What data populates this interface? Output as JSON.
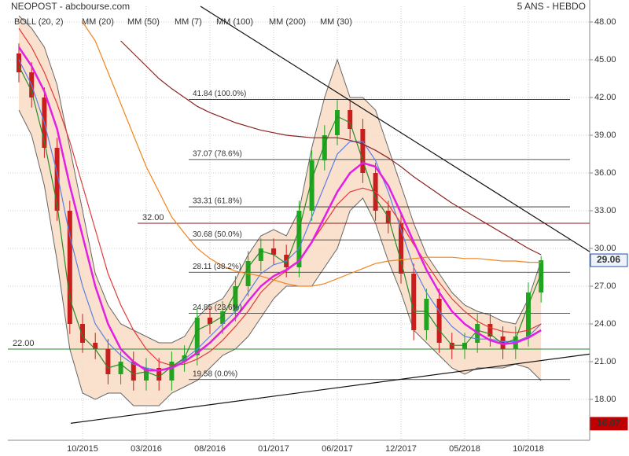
{
  "chart_data": {
    "type": "candlestick",
    "title": "NEOPOST - abcbourse.com",
    "subtitle": "5 ANS - HEBDO",
    "categories": [
      null,
      null,
      null,
      null,
      null,
      "10/2015",
      null,
      null,
      null,
      null,
      "03/2016",
      null,
      null,
      null,
      null,
      "08/2016",
      null,
      null,
      null,
      null,
      "01/2017",
      null,
      null,
      null,
      null,
      "06/2017",
      null,
      null,
      null,
      null,
      "12/2017",
      null,
      null,
      null,
      null,
      "05/2018",
      null,
      null,
      null,
      null,
      "10/2018",
      null
    ],
    "open": [
      45.5,
      44,
      42,
      38,
      33,
      24,
      22.5,
      22,
      20,
      21,
      19.5,
      20.5,
      19.5,
      21,
      21.5,
      24.5,
      24,
      25,
      27,
      29,
      30,
      29.5,
      28.5,
      33,
      37,
      39,
      41,
      39.5,
      36,
      33,
      32,
      28,
      23.5,
      26,
      22.5,
      22,
      22.5,
      24,
      23,
      22,
      23,
      26.5
    ],
    "high": [
      46.3,
      44.8,
      42.8,
      38.8,
      33.8,
      24.8,
      23.3,
      22.8,
      21.8,
      21.8,
      21.3,
      21.3,
      21.8,
      22.3,
      25.3,
      25.3,
      25.8,
      27.8,
      29.8,
      30.8,
      30.8,
      30.3,
      33.8,
      37.8,
      39.8,
      41.8,
      41.8,
      40.3,
      36.8,
      33.8,
      32.8,
      28.8,
      26.8,
      26.8,
      23.3,
      23.3,
      24.8,
      24.8,
      23.8,
      23.8,
      27.3,
      29.4
    ],
    "low": [
      43.2,
      41.2,
      37.2,
      32.2,
      23.2,
      21.7,
      21.2,
      19.2,
      19.2,
      18.7,
      18.7,
      18.7,
      18.7,
      20.2,
      20.7,
      23.2,
      23.2,
      24.2,
      26.2,
      28.2,
      28.7,
      27.7,
      27.7,
      32.2,
      36.2,
      38.2,
      38.7,
      35.2,
      32.2,
      31.2,
      27.2,
      22.7,
      22.7,
      21.7,
      21.2,
      21.2,
      21.7,
      22.2,
      21.2,
      21.2,
      22.2,
      25.7
    ],
    "close": [
      44,
      42,
      38,
      33,
      24,
      22.5,
      22,
      20,
      21,
      19.5,
      20.5,
      19.5,
      21,
      21.5,
      24.5,
      24,
      25,
      27,
      29,
      30,
      29.5,
      28.5,
      33,
      37,
      39,
      41,
      39.5,
      36,
      33,
      32,
      28,
      23.5,
      26,
      22.5,
      22,
      22.5,
      24,
      23,
      22,
      23,
      26.5,
      29.06
    ],
    "up_color": "#1fa51f",
    "down_color": "#c81e1e",
    "bands": {
      "name": "BOLL (20, 2)",
      "color": "#f9dcc4",
      "line_color": "#666666",
      "upper": [
        48.5,
        47.5,
        46,
        43,
        38,
        33,
        28,
        25.5,
        24,
        23.5,
        23,
        22.5,
        22.5,
        23,
        24.5,
        25.5,
        26,
        27.5,
        29.5,
        31,
        31.5,
        31,
        33,
        38,
        42,
        45,
        42,
        42,
        41,
        38,
        35,
        32,
        29.5,
        28,
        26.5,
        25.5,
        25,
        24.7,
        24.2,
        24,
        26,
        29
      ],
      "lower": [
        41,
        39,
        35,
        29,
        22,
        18.5,
        18,
        18.5,
        18.5,
        17.5,
        17.5,
        17.5,
        18.5,
        19,
        19.5,
        20.5,
        21.5,
        22,
        23,
        24.5,
        26,
        27,
        27,
        27,
        28.5,
        30,
        33,
        34,
        32,
        29,
        26.5,
        23.5,
        22.5,
        21.5,
        20.5,
        20,
        20.5,
        20.5,
        20.5,
        20.8,
        20.5,
        19.5
      ]
    },
    "series": [
      {
        "name": "MM (20)",
        "color": "#5b7fe6",
        "values": [
          45,
          43,
          40,
          36,
          31,
          27,
          24,
          22.5,
          21.5,
          20.8,
          20.5,
          20.3,
          20.6,
          21.2,
          22,
          23,
          24,
          25,
          26.5,
          28,
          28.7,
          29,
          30,
          32.5,
          35,
          37.5,
          38.5,
          38.5,
          37,
          34.5,
          31.5,
          28.5,
          26.5,
          25,
          23.8,
          23,
          22.8,
          22.8,
          22.6,
          22.6,
          23,
          24
        ]
      },
      {
        "name": "MM (50)",
        "color": "#e23a3a",
        "values": [
          47.5,
          46,
          44,
          41.5,
          38.5,
          35,
          31.5,
          28,
          25.5,
          23.5,
          22,
          21,
          20.7,
          20.8,
          21.2,
          21.8,
          22.7,
          23.8,
          25,
          26.5,
          27.5,
          28.2,
          29,
          30.5,
          32,
          33.5,
          34.5,
          34.8,
          34.5,
          33.5,
          32,
          30.3,
          28.8,
          27.3,
          26,
          25,
          24.2,
          23.7,
          23.4,
          23.3,
          23.5,
          24
        ]
      },
      {
        "name": "MM (7)",
        "color": "#2a8a2a",
        "values": [
          44.5,
          42.5,
          38.5,
          33.5,
          26,
          23,
          22,
          20.5,
          20.8,
          20,
          20.2,
          19.8,
          20.6,
          21.3,
          23.5,
          24,
          24.6,
          26.5,
          28.5,
          29.8,
          29.5,
          28.8,
          31.5,
          35.5,
          38.3,
          40.5,
          40,
          37,
          34,
          32.5,
          29,
          25,
          25,
          23.5,
          22.3,
          22.3,
          23.5,
          23.2,
          22.4,
          22.8,
          25.5,
          28
        ]
      },
      {
        "name": "MM (100)",
        "color": "#f0841e",
        "values": [
          null,
          null,
          null,
          null,
          null,
          48,
          46.5,
          44,
          41.5,
          39,
          36.5,
          34.5,
          32.5,
          31.2,
          30,
          29.2,
          28.6,
          28.2,
          28,
          27.8,
          27.5,
          27.2,
          27,
          27,
          27.2,
          27.6,
          28,
          28.4,
          28.8,
          29,
          29.1,
          29.2,
          29.3,
          29.3,
          29.3,
          29.2,
          29.2,
          29.1,
          29,
          29,
          28.9,
          28.9
        ]
      },
      {
        "name": "MM (200)",
        "color": "#8b2323",
        "values": [
          null,
          null,
          null,
          null,
          null,
          null,
          null,
          null,
          46.5,
          45.5,
          44.5,
          43.5,
          42.7,
          42,
          41.3,
          40.8,
          40.4,
          40,
          39.7,
          39.4,
          39.2,
          39,
          38.9,
          38.8,
          38.8,
          38.8,
          38.6,
          38.3,
          37.8,
          37.2,
          36.5,
          35.7,
          35,
          34.3,
          33.6,
          33,
          32.4,
          31.8,
          31.2,
          30.6,
          30,
          29.5
        ]
      },
      {
        "name": "MM (30)",
        "color": "#e21fe2",
        "values": [
          46,
          44.5,
          42.5,
          39.5,
          35,
          31,
          27,
          24,
          22,
          21,
          20.3,
          20.3,
          20.5,
          21,
          21.7,
          22.5,
          23.5,
          24.5,
          25.8,
          27,
          27.8,
          28.3,
          29,
          30.5,
          32.5,
          34.5,
          36,
          36.8,
          36.5,
          35,
          32.8,
          30.5,
          28.3,
          26.5,
          25,
          24,
          23.3,
          22.7,
          22.4,
          22.5,
          22.9,
          23.5
        ]
      }
    ],
    "fib_levels": [
      {
        "value": 41.84,
        "label": "41.84  (100.0%)"
      },
      {
        "value": 37.07,
        "label": "37.07  (78.6%)"
      },
      {
        "value": 33.31,
        "label": "33.31  (61.8%)"
      },
      {
        "value": 30.68,
        "label": "30.68  (50.0%)"
      },
      {
        "value": 28.11,
        "label": "28.11  (38.2%)"
      },
      {
        "value": 24.85,
        "label": "24.85  (23.6%)"
      },
      {
        "value": 19.58,
        "label": "19.58  (0.0%)"
      }
    ],
    "hlines": [
      {
        "value": 32,
        "label": "32.00",
        "color": "#8b1a1a"
      },
      {
        "value": 22,
        "label": "22.00",
        "color": "#2a8a2a"
      }
    ],
    "trendlines": [
      {
        "x": [
          14.26,
          44.8
        ],
        "y": [
          49.25,
          29.75
        ]
      },
      {
        "x": [
          4.07,
          44.8
        ],
        "y": [
          16.1,
          21.6
        ]
      }
    ],
    "price_tags": [
      {
        "value": 29.06,
        "color": "#1f4fa8"
      },
      {
        "value": 16.07,
        "color": "#c00000"
      }
    ],
    "ylim": [
      14.75,
      49.25
    ],
    "yticks": [
      {
        "value": 48,
        "label": "48.00"
      },
      {
        "value": 45,
        "label": "45.00"
      },
      {
        "value": 42,
        "label": "42.00"
      },
      {
        "value": 39,
        "label": "39.00"
      },
      {
        "value": 36,
        "label": "36.00"
      },
      {
        "value": 33,
        "label": "33.00"
      },
      {
        "value": 30,
        "label": "30.00"
      },
      {
        "value": 27,
        "label": "27.00"
      },
      {
        "value": 24,
        "label": "24.00"
      },
      {
        "value": 21,
        "label": "21.00"
      },
      {
        "value": 18,
        "label": "18.00"
      }
    ],
    "grid": true
  }
}
